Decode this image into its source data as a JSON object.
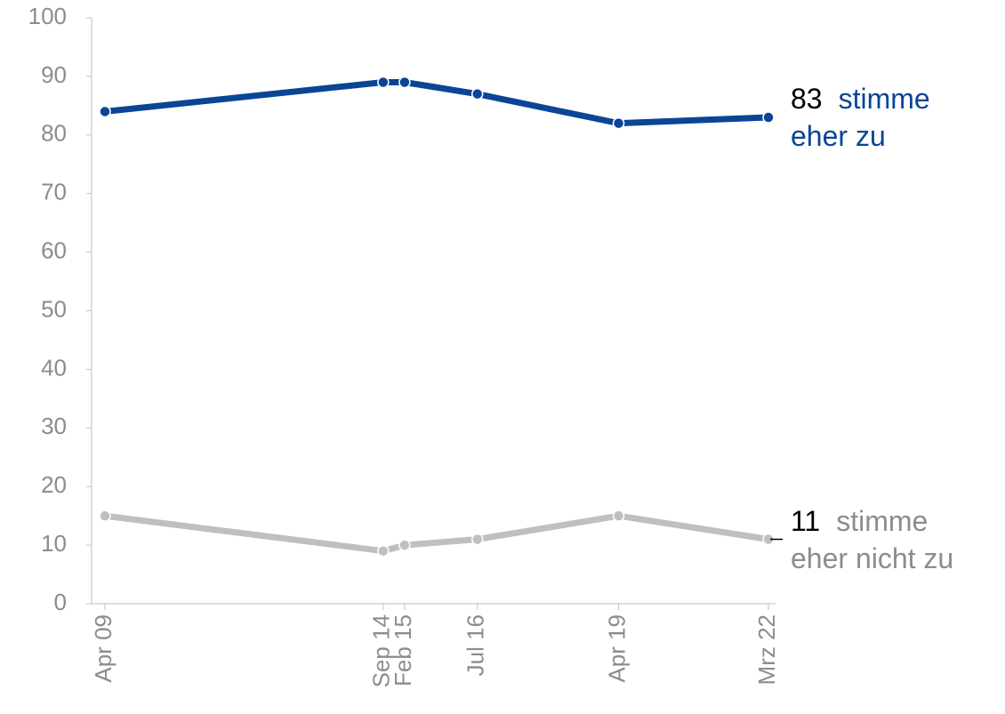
{
  "chart_data": {
    "type": "line",
    "x": [
      "Apr 09",
      "Sep 14",
      "Feb 15",
      "Jul 16",
      "Apr 19",
      "Mrz 22"
    ],
    "series": [
      {
        "name": "stimme eher zu",
        "color": "#0a4596",
        "values": [
          84,
          89,
          89,
          87,
          82,
          83
        ]
      },
      {
        "name": "stimme eher nicht zu",
        "color": "#bfbfbf",
        "values": [
          15,
          9,
          10,
          11,
          15,
          11
        ]
      }
    ],
    "ylim": [
      0,
      100
    ],
    "yticks": [
      0,
      10,
      20,
      30,
      40,
      50,
      60,
      70,
      80,
      90,
      100
    ]
  }
}
